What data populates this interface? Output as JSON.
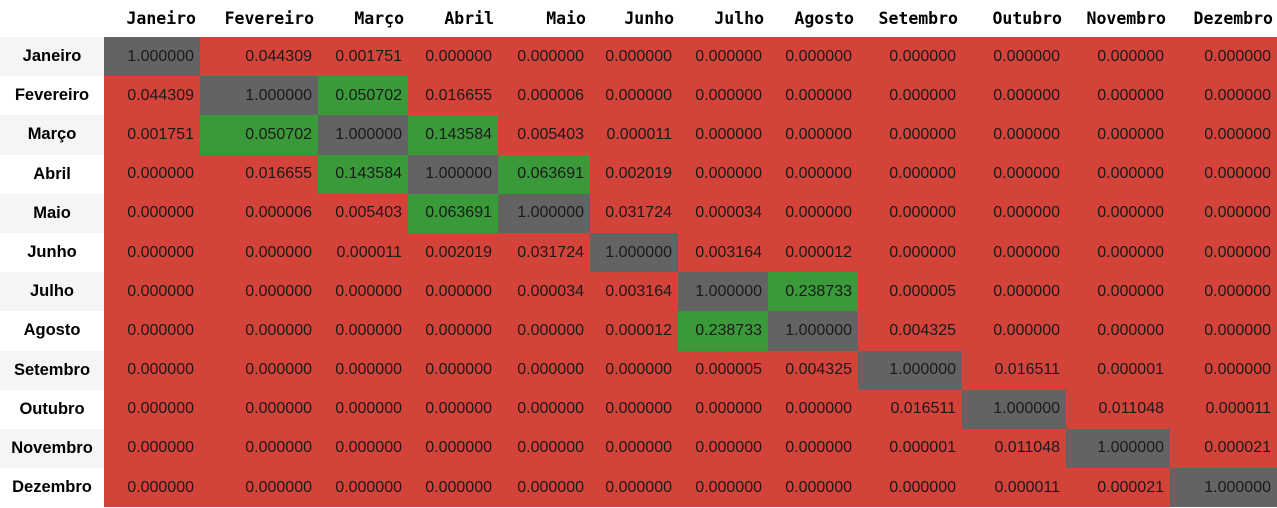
{
  "chart_data": {
    "type": "heatmap",
    "title": "",
    "row_labels": [
      "Janeiro",
      "Fevereiro",
      "Março",
      "Abril",
      "Maio",
      "Junho",
      "Julho",
      "Agosto",
      "Setembro",
      "Outubro",
      "Novembro",
      "Dezembro"
    ],
    "col_labels": [
      "Janeiro",
      "Fevereiro",
      "Março",
      "Abril",
      "Maio",
      "Junho",
      "Julho",
      "Agosto",
      "Setembro",
      "Outubro",
      "Novembro",
      "Dezembro"
    ],
    "values": [
      [
        "1.000000",
        "0.044309",
        "0.001751",
        "0.000000",
        "0.000000",
        "0.000000",
        "0.000000",
        "0.000000",
        "0.000000",
        "0.000000",
        "0.000000",
        "0.000000"
      ],
      [
        "0.044309",
        "1.000000",
        "0.050702",
        "0.016655",
        "0.000006",
        "0.000000",
        "0.000000",
        "0.000000",
        "0.000000",
        "0.000000",
        "0.000000",
        "0.000000"
      ],
      [
        "0.001751",
        "0.050702",
        "1.000000",
        "0.143584",
        "0.005403",
        "0.000011",
        "0.000000",
        "0.000000",
        "0.000000",
        "0.000000",
        "0.000000",
        "0.000000"
      ],
      [
        "0.000000",
        "0.016655",
        "0.143584",
        "1.000000",
        "0.063691",
        "0.002019",
        "0.000000",
        "0.000000",
        "0.000000",
        "0.000000",
        "0.000000",
        "0.000000"
      ],
      [
        "0.000000",
        "0.000006",
        "0.005403",
        "0.063691",
        "1.000000",
        "0.031724",
        "0.000034",
        "0.000000",
        "0.000000",
        "0.000000",
        "0.000000",
        "0.000000"
      ],
      [
        "0.000000",
        "0.000000",
        "0.000011",
        "0.002019",
        "0.031724",
        "1.000000",
        "0.003164",
        "0.000012",
        "0.000000",
        "0.000000",
        "0.000000",
        "0.000000"
      ],
      [
        "0.000000",
        "0.000000",
        "0.000000",
        "0.000000",
        "0.000034",
        "0.003164",
        "1.000000",
        "0.238733",
        "0.000005",
        "0.000000",
        "0.000000",
        "0.000000"
      ],
      [
        "0.000000",
        "0.000000",
        "0.000000",
        "0.000000",
        "0.000000",
        "0.000012",
        "0.238733",
        "1.000000",
        "0.004325",
        "0.000000",
        "0.000000",
        "0.000000"
      ],
      [
        "0.000000",
        "0.000000",
        "0.000000",
        "0.000000",
        "0.000000",
        "0.000000",
        "0.000005",
        "0.004325",
        "1.000000",
        "0.016511",
        "0.000001",
        "0.000000"
      ],
      [
        "0.000000",
        "0.000000",
        "0.000000",
        "0.000000",
        "0.000000",
        "0.000000",
        "0.000000",
        "0.000000",
        "0.016511",
        "1.000000",
        "0.011048",
        "0.000011"
      ],
      [
        "0.000000",
        "0.000000",
        "0.000000",
        "0.000000",
        "0.000000",
        "0.000000",
        "0.000000",
        "0.000000",
        "0.000001",
        "0.011048",
        "1.000000",
        "0.000021"
      ],
      [
        "0.000000",
        "0.000000",
        "0.000000",
        "0.000000",
        "0.000000",
        "0.000000",
        "0.000000",
        "0.000000",
        "0.000000",
        "0.000011",
        "0.000021",
        "1.000000"
      ]
    ],
    "cell_colors": {
      "diagonal": "#636363",
      "highlight": "#3a9a3a",
      "default": "#d3433a"
    },
    "highlighted_cells": [
      [
        1,
        2
      ],
      [
        2,
        1
      ],
      [
        2,
        3
      ],
      [
        3,
        2
      ],
      [
        3,
        4
      ],
      [
        4,
        3
      ],
      [
        6,
        7
      ],
      [
        7,
        6
      ]
    ]
  }
}
